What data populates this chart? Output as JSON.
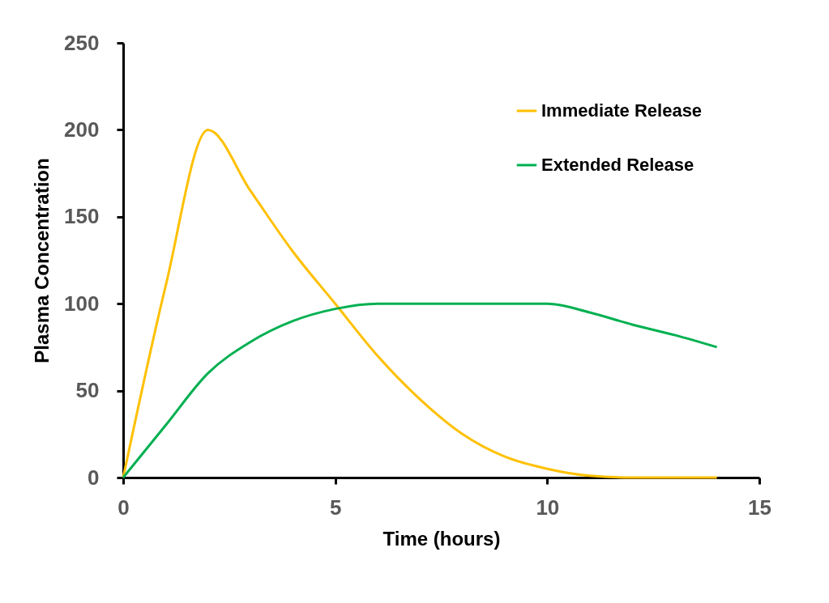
{
  "chart_data": {
    "type": "line",
    "xlabel": "Time (hours)",
    "ylabel": "Plasma Concentration",
    "x": [
      0,
      1,
      2,
      3,
      4,
      5,
      6,
      7,
      8,
      9,
      10,
      11,
      12,
      13,
      14
    ],
    "series": [
      {
        "name": "Immediate Release",
        "color": "#ffc000",
        "values": [
          0,
          110,
          200,
          165,
          130,
          100,
          70,
          45,
          25,
          12,
          5,
          1,
          0,
          0,
          0
        ]
      },
      {
        "name": "Extended Release",
        "color": "#00b050",
        "values": [
          0,
          30,
          60,
          78,
          90,
          97,
          100,
          100,
          100,
          100,
          100,
          95,
          88,
          82,
          75
        ]
      }
    ],
    "xlim": [
      0,
      15
    ],
    "xticks": [
      0,
      5,
      10,
      15
    ],
    "ylim": [
      0,
      250
    ],
    "yticks": [
      0,
      50,
      100,
      150,
      200,
      250
    ],
    "grid": false,
    "legend": "top right",
    "marker": "none",
    "line_style": "solid"
  }
}
